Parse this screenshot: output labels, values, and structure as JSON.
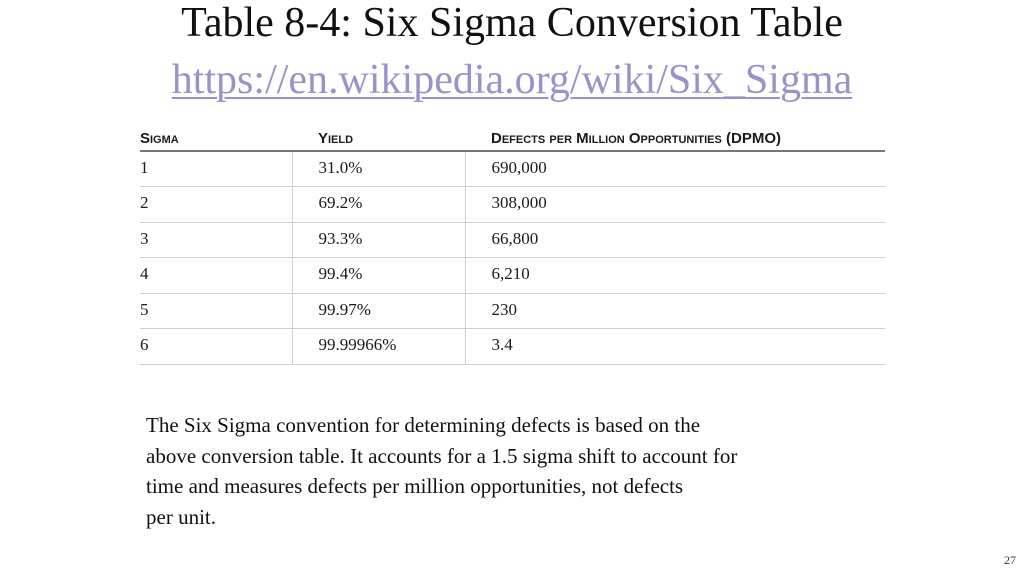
{
  "slide": {
    "title": "Table 8-4:  Six Sigma Conversion Table",
    "link": "https://en.wikipedia.org/wiki/Six_Sigma",
    "page_number": "27"
  },
  "table": {
    "headers": [
      "Sigma",
      "Yield",
      "Defects per Million Opportunities (DPMO)"
    ],
    "rows": [
      [
        "1",
        "31.0%",
        "690,000"
      ],
      [
        "2",
        "69.2%",
        "308,000"
      ],
      [
        "3",
        "93.3%",
        "66,800"
      ],
      [
        "4",
        "99.4%",
        "6,210"
      ],
      [
        "5",
        "99.97%",
        "230"
      ],
      [
        "6",
        "99.99966%",
        "3.4"
      ]
    ]
  },
  "caption": {
    "lines": [
      "The Six Sigma convention for determining defects is based on the",
      "above conversion table.  It accounts for a 1.5 sigma shift to account for",
      "time and measures defects per million opportunities, not defects",
      "per unit."
    ]
  }
}
